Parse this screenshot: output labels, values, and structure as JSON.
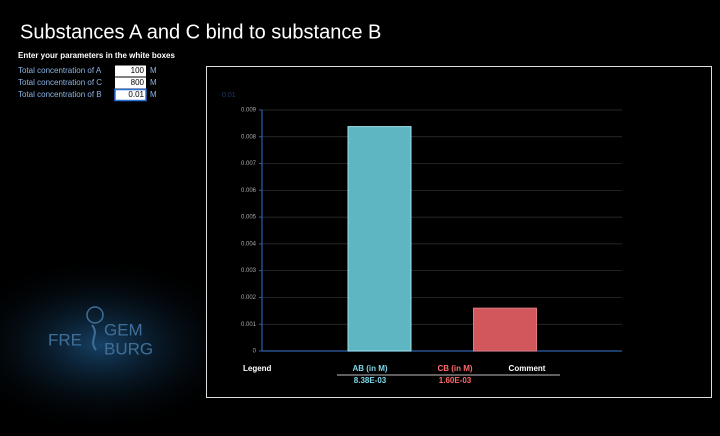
{
  "header": {
    "title": "Substances A and C bind to substance B",
    "subtitle": "Enter your parameters in the white boxes"
  },
  "inputs": [
    {
      "label": "Total concentration of A",
      "value": "100",
      "unit": "M"
    },
    {
      "label": "Total concentration of C",
      "value": "800",
      "unit": "M"
    },
    {
      "label": "Total concentration of B",
      "value": "0.01",
      "unit": "M"
    }
  ],
  "logo": {
    "left": "FRE",
    "top": "GEM",
    "bottom": "BURG"
  },
  "chart_data": {
    "type": "bar",
    "annotation": "0.01",
    "categories": [
      "AB (in M)",
      "CB (in M)"
    ],
    "values": [
      0.00838,
      0.0016
    ],
    "value_labels": [
      "8.38E-03",
      "1.60E-03"
    ],
    "colors": [
      "#5fb6c3",
      "#d2575c"
    ],
    "ylim": [
      0,
      0.009
    ],
    "yticks": [
      0,
      0.001,
      0.002,
      0.003,
      0.004,
      0.005,
      0.006,
      0.007,
      0.008,
      0.009
    ],
    "grid": true,
    "legend_title": "Legend",
    "legend_extra": "Comment"
  }
}
